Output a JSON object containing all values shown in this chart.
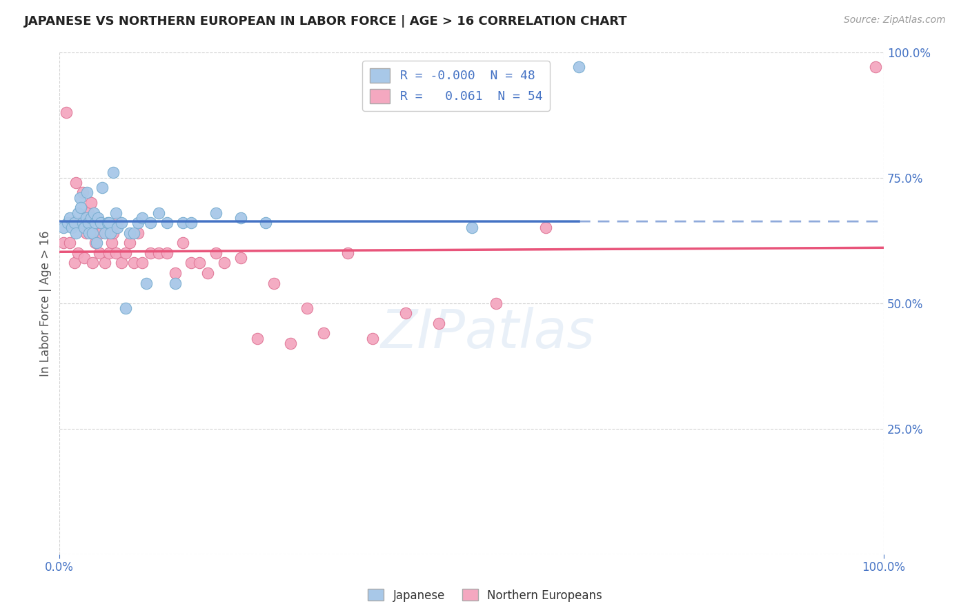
{
  "title": "JAPANESE VS NORTHERN EUROPEAN IN LABOR FORCE | AGE > 16 CORRELATION CHART",
  "source_text": "Source: ZipAtlas.com",
  "ylabel": "In Labor Force | Age > 16",
  "xlim": [
    0.0,
    1.0
  ],
  "ylim": [
    0.0,
    1.0
  ],
  "watermark": "ZIPatlas",
  "background_color": "#ffffff",
  "grid_color": "#c8c8c8",
  "axis_label_color": "#4472c4",
  "japanese_color": "#a8c8e8",
  "northern_color": "#f4a8c0",
  "japanese_edge": "#7aaed0",
  "northern_edge": "#e07898",
  "blue_line_color": "#4472c4",
  "pink_line_color": "#e8547a",
  "japanese_x": [
    0.005,
    0.01,
    0.012,
    0.015,
    0.018,
    0.02,
    0.022,
    0.025,
    0.026,
    0.028,
    0.03,
    0.032,
    0.033,
    0.035,
    0.036,
    0.038,
    0.04,
    0.042,
    0.043,
    0.045,
    0.047,
    0.05,
    0.052,
    0.055,
    0.058,
    0.06,
    0.062,
    0.065,
    0.068,
    0.07,
    0.075,
    0.08,
    0.085,
    0.09,
    0.095,
    0.1,
    0.105,
    0.11,
    0.12,
    0.13,
    0.14,
    0.15,
    0.16,
    0.19,
    0.22,
    0.25,
    0.5,
    0.63
  ],
  "japanese_y": [
    0.65,
    0.66,
    0.67,
    0.65,
    0.66,
    0.64,
    0.68,
    0.71,
    0.69,
    0.66,
    0.65,
    0.67,
    0.72,
    0.66,
    0.64,
    0.67,
    0.64,
    0.68,
    0.66,
    0.62,
    0.67,
    0.66,
    0.73,
    0.64,
    0.66,
    0.66,
    0.64,
    0.76,
    0.68,
    0.65,
    0.66,
    0.49,
    0.64,
    0.64,
    0.66,
    0.67,
    0.54,
    0.66,
    0.68,
    0.66,
    0.54,
    0.66,
    0.66,
    0.68,
    0.67,
    0.66,
    0.65,
    0.97
  ],
  "northern_x": [
    0.005,
    0.008,
    0.012,
    0.015,
    0.018,
    0.02,
    0.022,
    0.025,
    0.028,
    0.03,
    0.032,
    0.035,
    0.038,
    0.04,
    0.043,
    0.045,
    0.048,
    0.05,
    0.055,
    0.058,
    0.06,
    0.063,
    0.065,
    0.068,
    0.07,
    0.075,
    0.08,
    0.085,
    0.09,
    0.095,
    0.1,
    0.11,
    0.12,
    0.13,
    0.14,
    0.15,
    0.16,
    0.17,
    0.18,
    0.19,
    0.2,
    0.22,
    0.24,
    0.26,
    0.28,
    0.3,
    0.32,
    0.35,
    0.38,
    0.42,
    0.46,
    0.53,
    0.59,
    0.99
  ],
  "northern_y": [
    0.62,
    0.88,
    0.62,
    0.66,
    0.58,
    0.74,
    0.6,
    0.66,
    0.72,
    0.59,
    0.64,
    0.68,
    0.7,
    0.58,
    0.62,
    0.64,
    0.6,
    0.64,
    0.58,
    0.64,
    0.6,
    0.62,
    0.64,
    0.6,
    0.66,
    0.58,
    0.6,
    0.62,
    0.58,
    0.64,
    0.58,
    0.6,
    0.6,
    0.6,
    0.56,
    0.62,
    0.58,
    0.58,
    0.56,
    0.6,
    0.58,
    0.59,
    0.43,
    0.54,
    0.42,
    0.49,
    0.44,
    0.6,
    0.43,
    0.48,
    0.46,
    0.5,
    0.65,
    0.97
  ]
}
